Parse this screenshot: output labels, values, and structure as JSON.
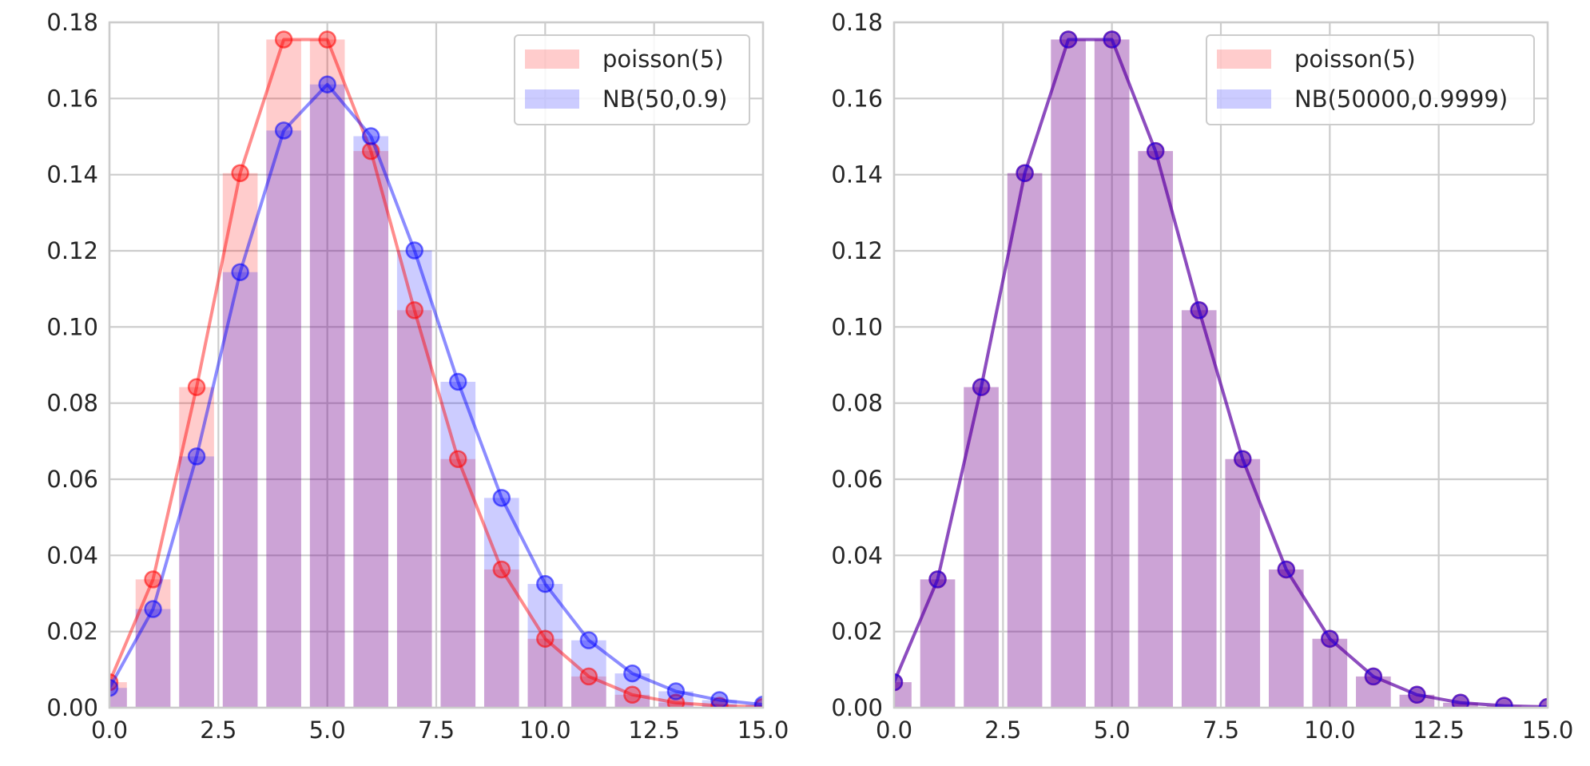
{
  "chart_data": [
    {
      "type": "bar",
      "title": "",
      "xlabel": "",
      "ylabel": "",
      "xlim": [
        0,
        15
      ],
      "ylim": [
        0,
        0.18
      ],
      "x_ticks": [
        "0.0",
        "2.5",
        "5.0",
        "7.5",
        "10.0",
        "12.5",
        "15.0"
      ],
      "y_ticks": [
        "0.00",
        "0.02",
        "0.04",
        "0.06",
        "0.08",
        "0.10",
        "0.12",
        "0.14",
        "0.16",
        "0.18"
      ],
      "grid": true,
      "legend_position": "top-right",
      "x": [
        0,
        1,
        2,
        3,
        4,
        5,
        6,
        7,
        8,
        9,
        10,
        11,
        12,
        13,
        14,
        15
      ],
      "series": [
        {
          "name": "poisson(5)",
          "color": "#ff0000",
          "values": [
            0.0067,
            0.0337,
            0.0842,
            0.1404,
            0.1755,
            0.1755,
            0.1462,
            0.1044,
            0.0653,
            0.0363,
            0.0181,
            0.0082,
            0.0034,
            0.0013,
            0.0005,
            0.0002
          ]
        },
        {
          "name": "NB(50,0.9)",
          "color": "#0000ff",
          "values": [
            0.0052,
            0.0259,
            0.066,
            0.1144,
            0.1516,
            0.1637,
            0.1501,
            0.1201,
            0.0856,
            0.0551,
            0.0325,
            0.0177,
            0.009,
            0.0043,
            0.002,
            0.0008
          ]
        }
      ]
    },
    {
      "type": "bar",
      "title": "",
      "xlabel": "",
      "ylabel": "",
      "xlim": [
        0,
        15
      ],
      "ylim": [
        0,
        0.18
      ],
      "x_ticks": [
        "0.0",
        "2.5",
        "5.0",
        "7.5",
        "10.0",
        "12.5",
        "15.0"
      ],
      "y_ticks": [
        "0.00",
        "0.02",
        "0.04",
        "0.06",
        "0.08",
        "0.10",
        "0.12",
        "0.14",
        "0.16",
        "0.18"
      ],
      "grid": true,
      "legend_position": "top-right",
      "x": [
        0,
        1,
        2,
        3,
        4,
        5,
        6,
        7,
        8,
        9,
        10,
        11,
        12,
        13,
        14,
        15
      ],
      "series": [
        {
          "name": "poisson(5)",
          "color": "#ff0000",
          "values": [
            0.0067,
            0.0337,
            0.0842,
            0.1404,
            0.1755,
            0.1755,
            0.1462,
            0.1044,
            0.0653,
            0.0363,
            0.0181,
            0.0082,
            0.0034,
            0.0013,
            0.0005,
            0.0002
          ]
        },
        {
          "name": "NB(50000,0.9999)",
          "color": "#0000ff",
          "values": [
            0.0067,
            0.0337,
            0.0842,
            0.1404,
            0.1755,
            0.1755,
            0.1462,
            0.1044,
            0.0653,
            0.0363,
            0.0181,
            0.0082,
            0.0034,
            0.0013,
            0.0005,
            0.0002
          ]
        }
      ]
    }
  ]
}
